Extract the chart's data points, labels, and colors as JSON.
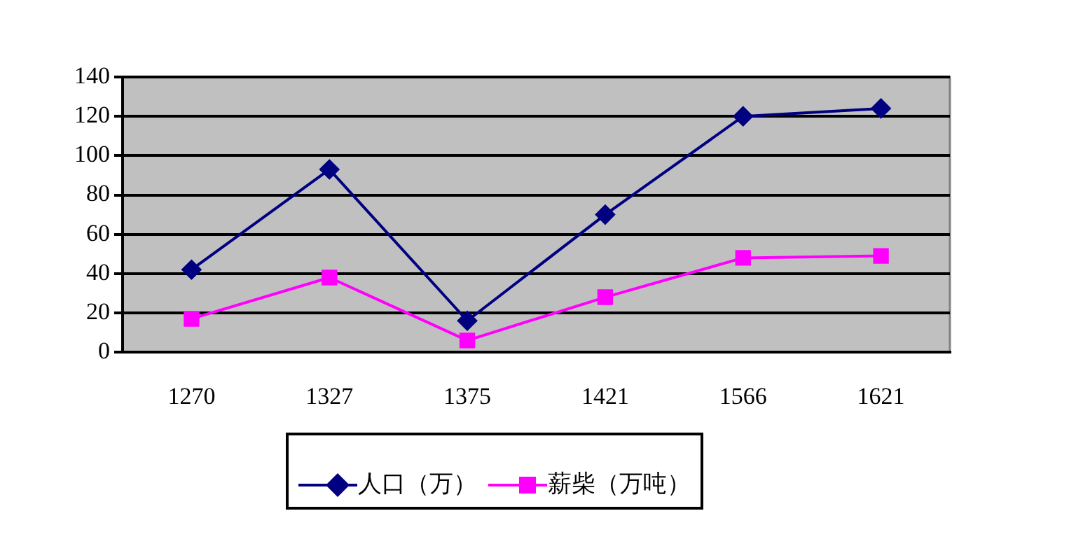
{
  "chart_data": {
    "type": "line",
    "categories": [
      "1270",
      "1327",
      "1375",
      "1421",
      "1566",
      "1621"
    ],
    "series": [
      {
        "name": "人口（万）",
        "color": "#000080",
        "values": [
          42,
          93,
          16,
          70,
          120,
          124
        ],
        "marker": "diamond"
      },
      {
        "name": "薪柴（万吨）",
        "color": "#ff00ff",
        "values": [
          17,
          38,
          6,
          28,
          48,
          49
        ],
        "marker": "square"
      }
    ],
    "ylim": [
      0,
      140
    ],
    "yticks": [
      0,
      20,
      40,
      60,
      80,
      100,
      120,
      140
    ],
    "grid": "y",
    "legend": "bottom",
    "line_style": "solid"
  }
}
